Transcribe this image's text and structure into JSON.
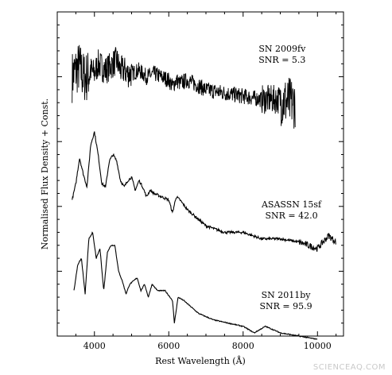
{
  "chart_data": {
    "type": "line",
    "xlabel": "Rest Wavelength (Å)",
    "ylabel": "Normalised Flux Density + Const.",
    "xlim": [
      3000,
      10700
    ],
    "ylim": [
      0,
      1
    ],
    "x_ticks": [
      4000,
      6000,
      8000,
      10000
    ],
    "x_tick_labels": [
      "4000",
      "6000",
      "8000",
      "10000"
    ],
    "y_tick_labels_shown": false,
    "grid": false,
    "series": [
      {
        "name": "SN 2009fv",
        "snr_label": "SNR = 5.3",
        "x": [
          3400,
          3500,
          3600,
          3700,
          3800,
          3900,
          4000,
          4100,
          4200,
          4300,
          4400,
          4500,
          4600,
          4700,
          4800,
          4900,
          5000,
          5200,
          5400,
          5600,
          5800,
          6000,
          6100,
          6200,
          6300,
          6500,
          7000,
          7500,
          8000,
          8500,
          9000,
          9200,
          9400
        ],
        "y": [
          0.8,
          0.82,
          0.83,
          0.8,
          0.8,
          0.82,
          0.81,
          0.84,
          0.83,
          0.82,
          0.83,
          0.84,
          0.85,
          0.82,
          0.82,
          0.81,
          0.81,
          0.82,
          0.8,
          0.81,
          0.8,
          0.79,
          0.77,
          0.79,
          0.78,
          0.79,
          0.76,
          0.75,
          0.74,
          0.73,
          0.73,
          0.72,
          0.72
        ]
      },
      {
        "name": "ASASSN 15sf",
        "snr_label": "SNR = 42.0",
        "x": [
          3400,
          3500,
          3600,
          3700,
          3800,
          3900,
          4000,
          4100,
          4200,
          4300,
          4400,
          4500,
          4600,
          4700,
          4800,
          4900,
          5000,
          5100,
          5200,
          5300,
          5400,
          5500,
          5600,
          5800,
          6000,
          6100,
          6200,
          6300,
          6500,
          7000,
          7500,
          8000,
          8500,
          9000,
          9500,
          10000,
          10300,
          10500
        ],
        "y": [
          0.42,
          0.47,
          0.55,
          0.5,
          0.46,
          0.59,
          0.63,
          0.56,
          0.47,
          0.46,
          0.54,
          0.56,
          0.54,
          0.48,
          0.46,
          0.48,
          0.49,
          0.45,
          0.48,
          0.46,
          0.43,
          0.45,
          0.44,
          0.43,
          0.42,
          0.38,
          0.43,
          0.42,
          0.39,
          0.34,
          0.32,
          0.32,
          0.3,
          0.3,
          0.29,
          0.27,
          0.31,
          0.29
        ]
      },
      {
        "name": "SN 2011by",
        "snr_label": "SNR = 95.9",
        "x": [
          3450,
          3550,
          3650,
          3750,
          3850,
          3950,
          4050,
          4150,
          4250,
          4350,
          4450,
          4550,
          4650,
          4750,
          4850,
          4950,
          5050,
          5150,
          5250,
          5350,
          5450,
          5550,
          5700,
          5900,
          6100,
          6150,
          6250,
          6400,
          6800,
          7200,
          7600,
          8000,
          8300,
          8600,
          9000,
          9500,
          10000
        ],
        "y": [
          0.14,
          0.22,
          0.24,
          0.13,
          0.3,
          0.32,
          0.24,
          0.27,
          0.14,
          0.26,
          0.28,
          0.28,
          0.2,
          0.17,
          0.13,
          0.16,
          0.17,
          0.18,
          0.14,
          0.16,
          0.12,
          0.16,
          0.14,
          0.14,
          0.11,
          0.04,
          0.12,
          0.11,
          0.07,
          0.05,
          0.04,
          0.03,
          0.01,
          0.03,
          0.01,
          0.0,
          -0.01
        ]
      }
    ]
  },
  "watermark": "SCIENCEAQ.COM"
}
